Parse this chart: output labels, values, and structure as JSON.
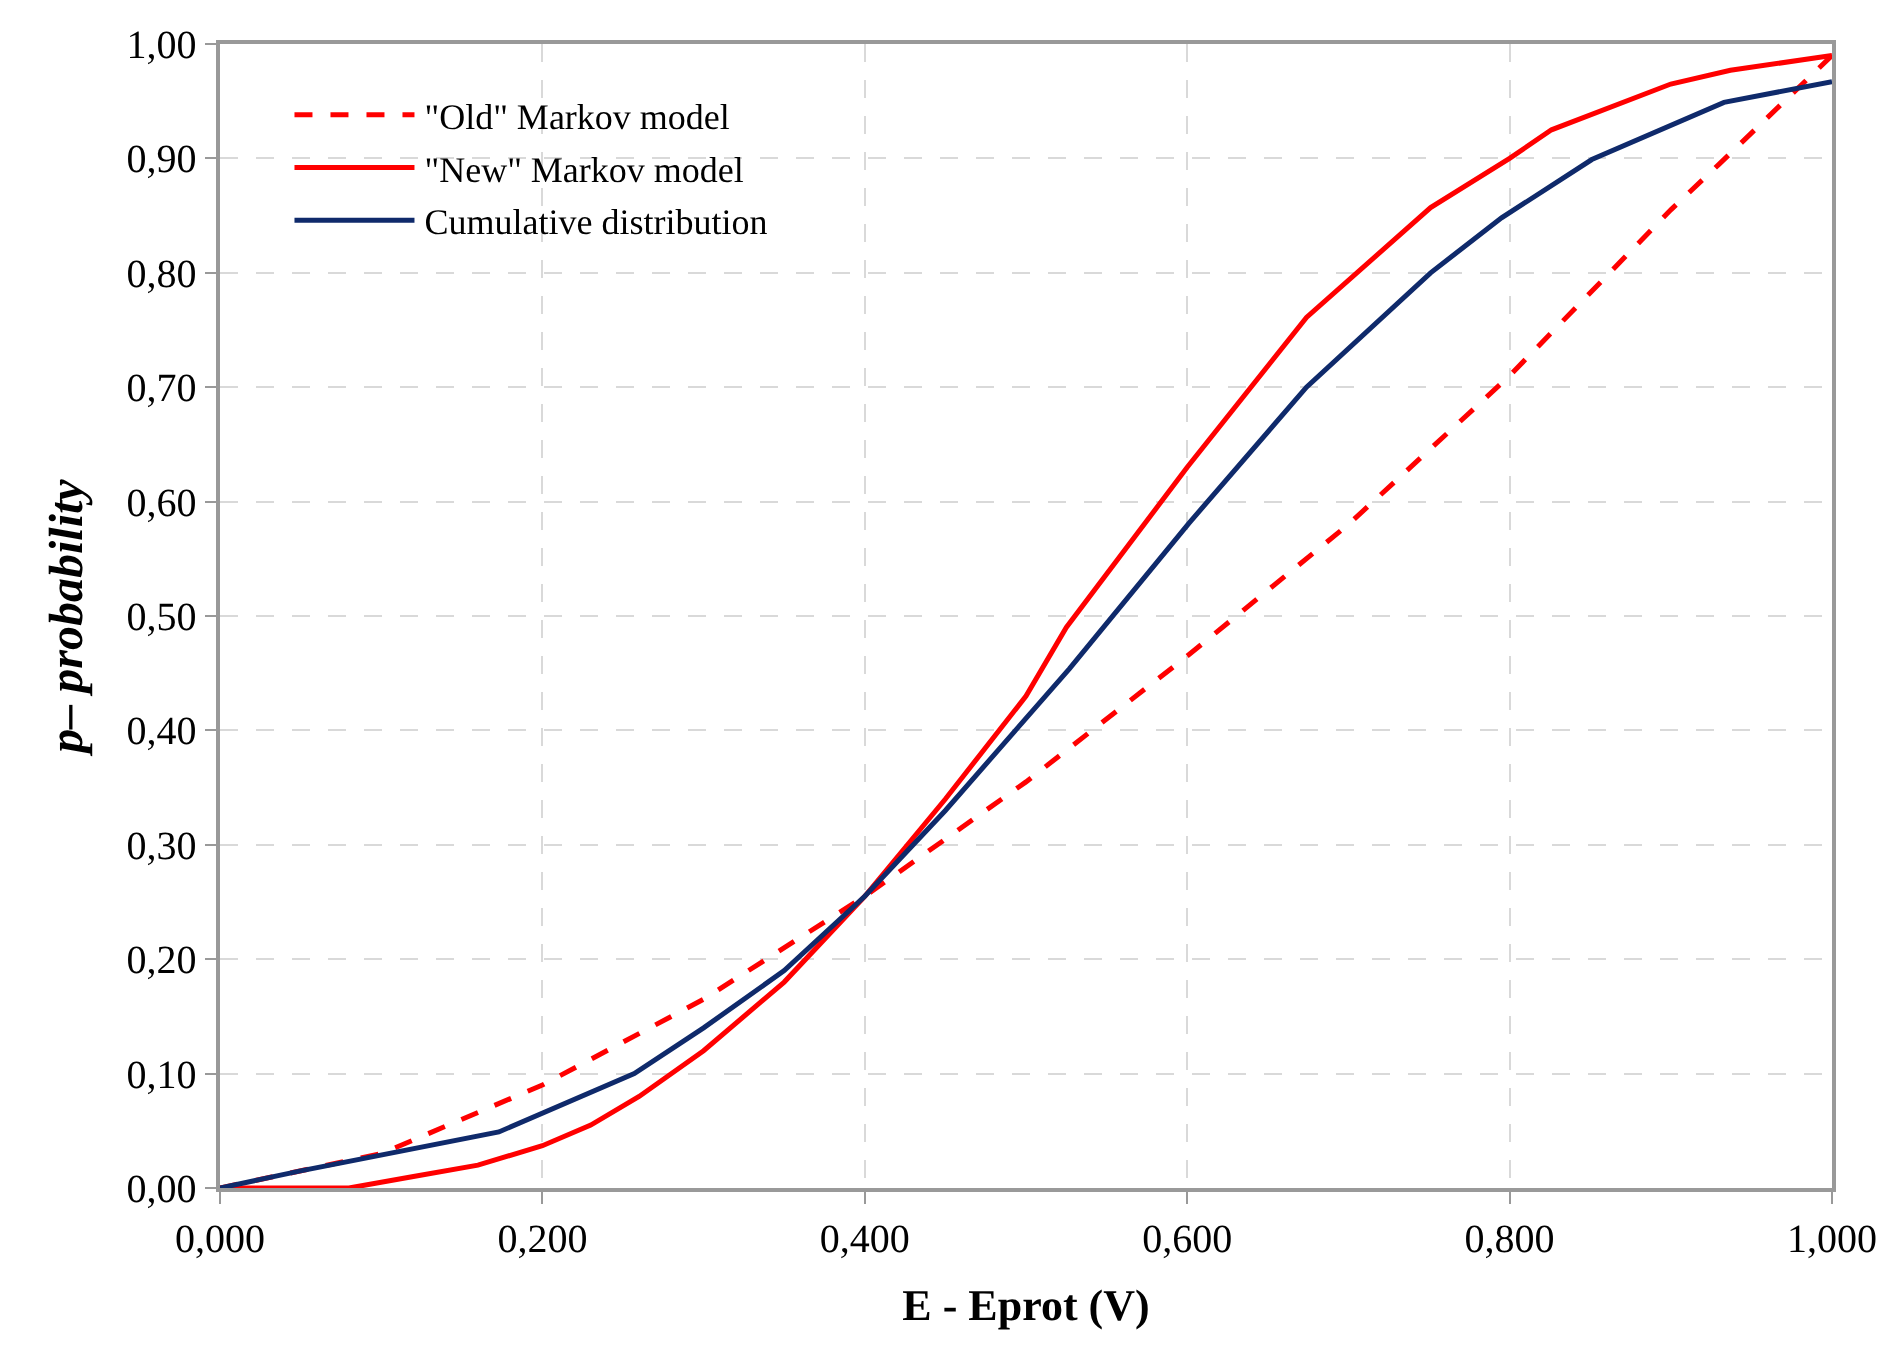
{
  "chart_data": {
    "type": "line",
    "xlabel": "E - Eprot (V)",
    "ylabel": "p– probability",
    "xlim": [
      0,
      1
    ],
    "ylim": [
      0,
      1
    ],
    "xticks": [
      {
        "value": 0,
        "label": "0,000"
      },
      {
        "value": 0.2,
        "label": "0,200"
      },
      {
        "value": 0.4,
        "label": "0,400"
      },
      {
        "value": 0.6,
        "label": "0,600"
      },
      {
        "value": 0.8,
        "label": "0,800"
      },
      {
        "value": 1,
        "label": "1,000"
      }
    ],
    "yticks": [
      {
        "value": 0,
        "label": "0,00"
      },
      {
        "value": 0.1,
        "label": "0,10"
      },
      {
        "value": 0.2,
        "label": "0,20"
      },
      {
        "value": 0.3,
        "label": "0,30"
      },
      {
        "value": 0.4,
        "label": "0,40"
      },
      {
        "value": 0.5,
        "label": "0,50"
      },
      {
        "value": 0.6,
        "label": "0,60"
      },
      {
        "value": 0.7,
        "label": "0,70"
      },
      {
        "value": 0.8,
        "label": "0,80"
      },
      {
        "value": 0.9,
        "label": "0,90"
      },
      {
        "value": 1,
        "label": "1,00"
      }
    ],
    "grid": true,
    "legend": "top left",
    "marker": "none",
    "series": [
      {
        "name": "\"Old\" Markov model",
        "color": "#ff0000",
        "line_style": "dashed",
        "x": [
          0,
          0.1,
          0.2,
          0.3,
          0.4,
          0.5,
          0.6,
          0.7,
          0.8,
          0.9,
          0.93,
          1.0
        ],
        "values": [
          0,
          0.03,
          0.09,
          0.165,
          0.255,
          0.355,
          0.465,
          0.58,
          0.71,
          0.855,
          0.895,
          0.99
        ]
      },
      {
        "name": "\"New\" Markov model",
        "color": "#ff0000",
        "line_style": "solid",
        "x": [
          0,
          0.08,
          0.12,
          0.16,
          0.2,
          0.23,
          0.26,
          0.3,
          0.35,
          0.4,
          0.45,
          0.5,
          0.525,
          0.6,
          0.674,
          0.751,
          0.8,
          0.826,
          0.9,
          0.937,
          1.0
        ],
        "values": [
          0,
          0,
          0.01,
          0.02,
          0.037,
          0.055,
          0.08,
          0.12,
          0.18,
          0.255,
          0.34,
          0.43,
          0.49,
          0.63,
          0.761,
          0.857,
          0.9,
          0.925,
          0.965,
          0.977,
          0.99
        ]
      },
      {
        "name": "Cumulative distribution",
        "color": "#0f2a6b",
        "line_style": "solid",
        "x": [
          0,
          0.05,
          0.173,
          0.257,
          0.3,
          0.35,
          0.4,
          0.45,
          0.527,
          0.601,
          0.674,
          0.751,
          0.795,
          0.851,
          0.933,
          1.0
        ],
        "values": [
          0,
          0.015,
          0.049,
          0.1,
          0.14,
          0.19,
          0.255,
          0.33,
          0.454,
          0.581,
          0.7,
          0.8,
          0.848,
          0.899,
          0.949,
          0.967
        ]
      }
    ]
  }
}
